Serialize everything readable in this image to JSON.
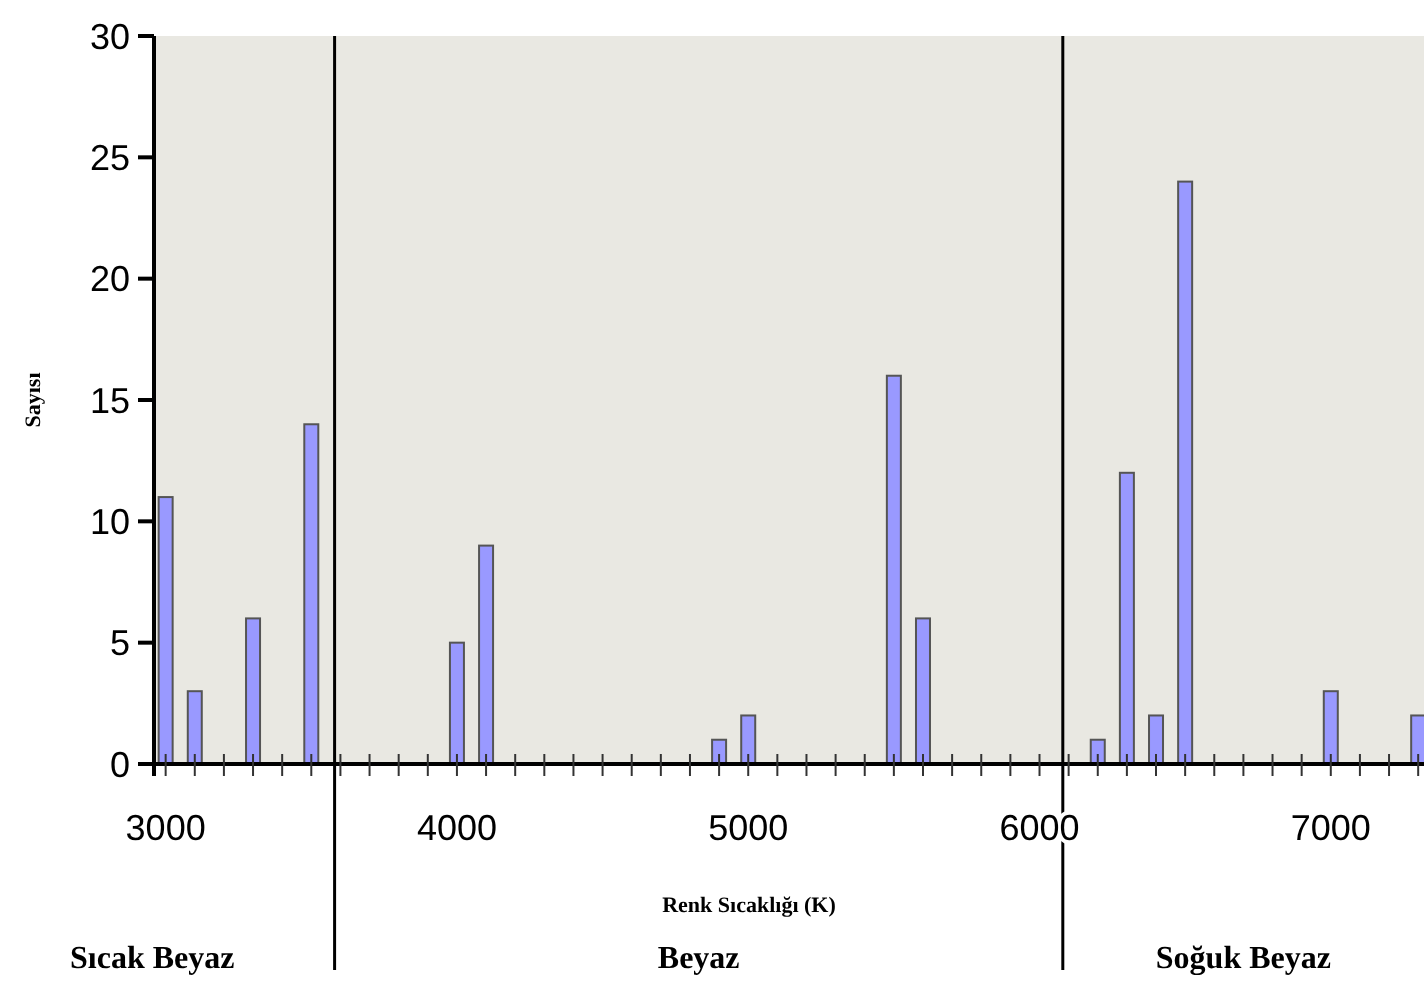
{
  "chart_data": {
    "type": "bar",
    "xlabel": "Renk Sıcaklığı (K)",
    "ylabel": "Sayısı",
    "x": [
      3000,
      3100,
      3300,
      3500,
      4000,
      4100,
      4900,
      5000,
      5500,
      5600,
      6200,
      6300,
      6400,
      6500,
      7000,
      7300
    ],
    "values": [
      11,
      3,
      6,
      14,
      5,
      9,
      1,
      2,
      16,
      6,
      1,
      12,
      2,
      24,
      3,
      2
    ],
    "color": "#9999ff",
    "xlim": [
      2960,
      7320
    ],
    "xticks": [
      3000,
      {
        "value": 3100,
        "label": null
      },
      {
        "value": 3200,
        "label": null
      },
      {
        "value": 3300,
        "label": null
      },
      {
        "value": 3400,
        "label": null
      },
      {
        "value": 3500,
        "label": null
      },
      {
        "value": 3600,
        "label": null
      },
      {
        "value": 3700,
        "label": null
      },
      {
        "value": 3800,
        "label": null
      },
      {
        "value": 3900,
        "label": null
      },
      4000,
      {
        "value": 4100,
        "label": null
      },
      {
        "value": 4200,
        "label": null
      },
      {
        "value": 4300,
        "label": null
      },
      {
        "value": 4400,
        "label": null
      },
      {
        "value": 4500,
        "label": null
      },
      {
        "value": 4600,
        "label": null
      },
      {
        "value": 4700,
        "label": null
      },
      {
        "value": 4800,
        "label": null
      },
      {
        "value": 4900,
        "label": null
      },
      5000,
      {
        "value": 5100,
        "label": null
      },
      {
        "value": 5200,
        "label": null
      },
      {
        "value": 5300,
        "label": null
      },
      {
        "value": 5400,
        "label": null
      },
      {
        "value": 5500,
        "label": null
      },
      {
        "value": 5600,
        "label": null
      },
      {
        "value": 5700,
        "label": null
      },
      {
        "value": 5800,
        "label": null
      },
      {
        "value": 5900,
        "label": null
      },
      6000,
      {
        "value": 6100,
        "label": null
      },
      {
        "value": 6200,
        "label": null
      },
      {
        "value": 6300,
        "label": null
      },
      {
        "value": 6400,
        "label": null
      },
      {
        "value": 6500,
        "label": null
      },
      {
        "value": 6600,
        "label": null
      },
      {
        "value": 6700,
        "label": null
      },
      {
        "value": 6800,
        "label": null
      },
      {
        "value": 6900,
        "label": null
      },
      7000,
      {
        "value": 7100,
        "label": null
      },
      {
        "value": 7200,
        "label": null
      },
      {
        "value": 7300,
        "label": null
      }
    ],
    "ylim": [
      0,
      30
    ],
    "yticks": [
      0,
      5,
      10,
      15,
      20,
      25,
      30
    ],
    "grid": false,
    "ref_lines": [
      {
        "axis": "x",
        "value": 3580,
        "color": "#000000"
      },
      {
        "axis": "x",
        "value": 6080,
        "color": "#000000"
      }
    ],
    "annotations": [
      "Sıcak Beyaz",
      "Beyaz",
      "Soğuk Beyaz"
    ]
  }
}
